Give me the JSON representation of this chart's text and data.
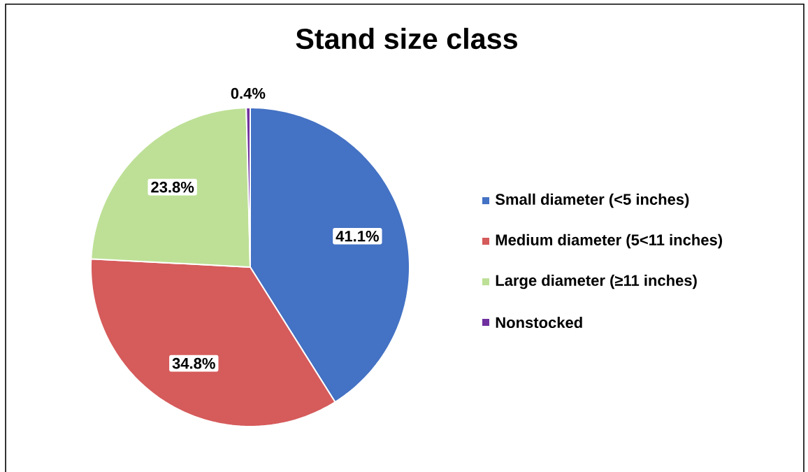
{
  "chart_data": {
    "type": "pie",
    "title": "Stand size class",
    "categories": [
      "Small diameter (<5 inches)",
      "Medium diameter (5<11 inches)",
      "Large diameter (≥11 inches)",
      "Nonstocked"
    ],
    "values": [
      41.1,
      34.8,
      23.8,
      0.4
    ],
    "value_labels": [
      "41.1%",
      "34.8%",
      "23.8%",
      "0.4%"
    ],
    "colors": [
      "#4472c4",
      "#d65b5b",
      "#bde096",
      "#7030a0"
    ],
    "legend": "right"
  }
}
